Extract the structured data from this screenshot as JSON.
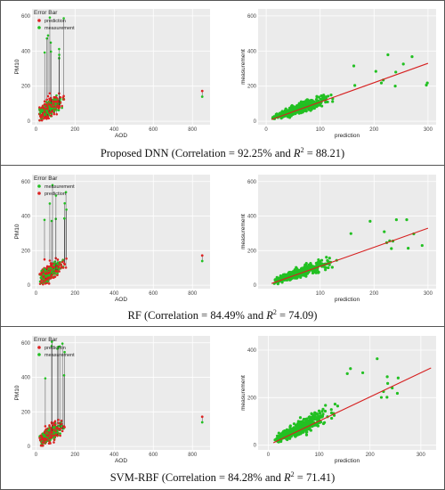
{
  "colors": {
    "measurement": "#22c022",
    "prediction": "#dd2222",
    "panel_bg": "#ebebeb",
    "grid": "#ffffff",
    "fit_line": "#d62020"
  },
  "panels": [
    {
      "caption": {
        "model": "Proposed DNN",
        "open": "(Correlation = ",
        "correlation": "92.25%",
        "and": " and ",
        "r2_symbol": "R",
        "r2_power": "2",
        "eq": " = ",
        "r2_value": "88.21",
        "close": ")"
      },
      "errorbar": {
        "legend_title": "Error Bar",
        "legend_items": [
          "prediction",
          "measurement"
        ],
        "xlabel": "AOD",
        "ylabel": "PM10",
        "xticks": [
          0,
          200,
          400,
          600,
          800
        ],
        "yticks": [
          0,
          200,
          400,
          600
        ],
        "xlim": [
          -20,
          890
        ],
        "ylim": [
          -20,
          640
        ]
      },
      "scatter": {
        "xlabel": "prediction",
        "ylabel": "measurement",
        "xticks": [
          0,
          100,
          200,
          300
        ],
        "yticks": [
          0,
          200,
          400,
          600
        ],
        "xlim": [
          -15,
          315
        ],
        "ylim": [
          -20,
          640
        ],
        "fit": {
          "x": [
            10,
            300
          ],
          "y": [
            10,
            330
          ]
        }
      }
    },
    {
      "caption": {
        "model": "RF",
        "open": " (Correlation = ",
        "correlation": "84.49%",
        "and": " and ",
        "r2_symbol": "R",
        "r2_power": "2",
        "eq": " = ",
        "r2_value": "74.09",
        "close": ")"
      },
      "errorbar": {
        "legend_title": "Error Bar",
        "legend_items": [
          "measurement",
          "prediction"
        ],
        "xlabel": "AOD",
        "ylabel": "PM10",
        "xticks": [
          0,
          200,
          400,
          600,
          800
        ],
        "yticks": [
          0,
          200,
          400,
          600
        ],
        "xlim": [
          -20,
          890
        ],
        "ylim": [
          -20,
          640
        ]
      },
      "scatter": {
        "xlabel": "prediction",
        "ylabel": "measurement",
        "xticks": [
          100,
          200,
          300
        ],
        "yticks": [
          0,
          200,
          400,
          600
        ],
        "xlim": [
          -15,
          315
        ],
        "ylim": [
          -20,
          640
        ],
        "fit": {
          "x": [
            10,
            300
          ],
          "y": [
            10,
            330
          ]
        }
      }
    },
    {
      "caption": {
        "model": "SVM-RBF",
        "open": " (Correlation = ",
        "correlation": "84.28%",
        "and": " and ",
        "r2_symbol": "R",
        "r2_power": "2",
        "eq": " = ",
        "r2_value": "71.41",
        "close": ")"
      },
      "errorbar": {
        "legend_title": "Error Bar",
        "legend_items": [
          "prediction",
          "measurement"
        ],
        "xlabel": "AOD",
        "ylabel": "PM10",
        "xticks": [
          0,
          200,
          400,
          600,
          800
        ],
        "yticks": [
          0,
          200,
          400,
          600
        ],
        "xlim": [
          -20,
          890
        ],
        "ylim": [
          -20,
          640
        ]
      },
      "scatter": {
        "xlabel": "prediction",
        "ylabel": "measurement",
        "xticks": [
          0,
          100,
          200,
          300
        ],
        "yticks": [
          0,
          200,
          400
        ],
        "xlim": [
          -20,
          330
        ],
        "ylim": [
          -20,
          460
        ],
        "fit": {
          "x": [
            10,
            320
          ],
          "y": [
            10,
            325
          ]
        }
      }
    }
  ],
  "chart_data": [
    {
      "type": "scatter",
      "panel": "Proposed DNN",
      "kind": "error-bar",
      "xlabel": "AOD",
      "ylabel": "PM10",
      "xlim": [
        0,
        860
      ],
      "ylim": [
        0,
        640
      ],
      "series": [
        {
          "name": "prediction"
        },
        {
          "name": "measurement"
        }
      ]
    },
    {
      "type": "scatter",
      "panel": "Proposed DNN",
      "kind": "fit",
      "xlabel": "prediction",
      "ylabel": "measurement",
      "xlim": [
        0,
        300
      ],
      "ylim": [
        0,
        600
      ],
      "fit_line": {
        "x": [
          10,
          300
        ],
        "y": [
          10,
          330
        ]
      }
    },
    {
      "type": "scatter",
      "panel": "RF",
      "kind": "error-bar",
      "xlabel": "AOD",
      "ylabel": "PM10",
      "xlim": [
        0,
        860
      ],
      "ylim": [
        0,
        640
      ],
      "series": [
        {
          "name": "measurement"
        },
        {
          "name": "prediction"
        }
      ]
    },
    {
      "type": "scatter",
      "panel": "RF",
      "kind": "fit",
      "xlabel": "prediction",
      "ylabel": "measurement",
      "xlim": [
        0,
        300
      ],
      "ylim": [
        0,
        600
      ],
      "fit_line": {
        "x": [
          10,
          300
        ],
        "y": [
          10,
          330
        ]
      }
    },
    {
      "type": "scatter",
      "panel": "SVM-RBF",
      "kind": "error-bar",
      "xlabel": "AOD",
      "ylabel": "PM10",
      "xlim": [
        0,
        860
      ],
      "ylim": [
        0,
        640
      ],
      "series": [
        {
          "name": "prediction"
        },
        {
          "name": "measurement"
        }
      ]
    },
    {
      "type": "scatter",
      "panel": "SVM-RBF",
      "kind": "fit",
      "xlabel": "prediction",
      "ylabel": "measurement",
      "xlim": [
        0,
        320
      ],
      "ylim": [
        0,
        440
      ],
      "fit_line": {
        "x": [
          10,
          320
        ],
        "y": [
          10,
          325
        ]
      }
    }
  ]
}
